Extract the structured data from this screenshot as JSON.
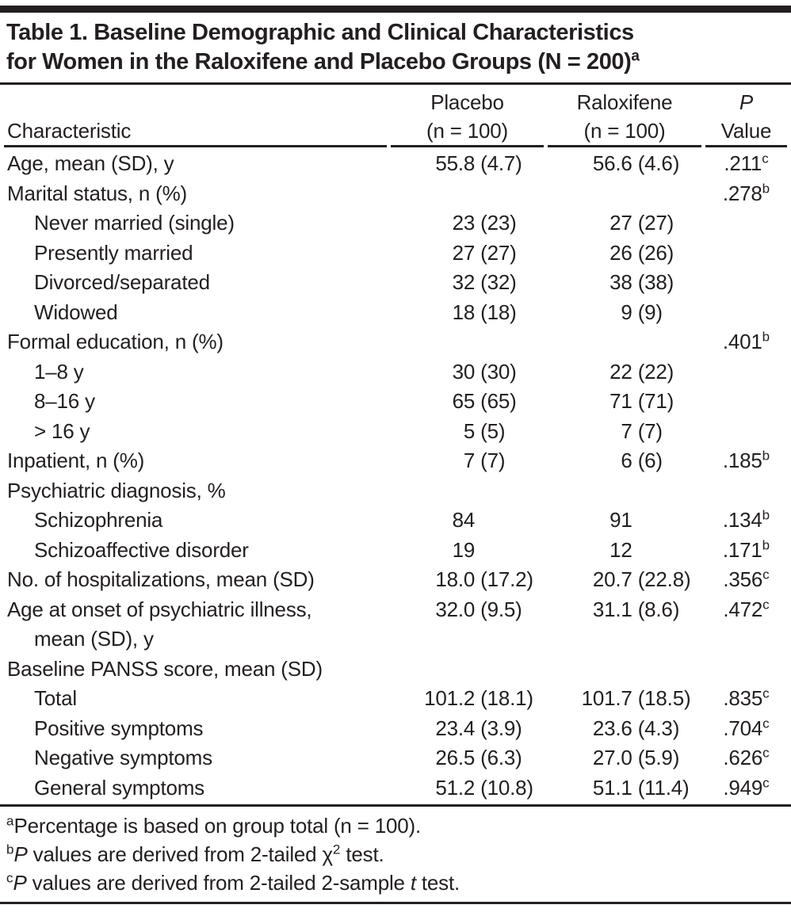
{
  "page": {
    "title": {
      "line1": "Table 1. Baseline Demographic and Clinical Characteristics",
      "line2": "for Women in the Raloxifene and Placebo Groups (N = 200)",
      "marker": "a"
    }
  },
  "table": {
    "header": {
      "characteristic": "Characteristic",
      "placebo": "Placebo",
      "placebo_n": "(n = 100)",
      "raloxifene": "Raloxifene",
      "raloxifene_n": "(n = 100)",
      "p_line1": "P",
      "p_line2": "Value"
    },
    "rows": [
      {
        "label": "Age, mean (SD), y",
        "indent": false,
        "placebo": "55.8 (4.7)",
        "raloxifene": "56.6 (4.6)",
        "p": ".211",
        "p_sup": "c"
      },
      {
        "label": "Marital status, n (%)",
        "indent": false,
        "placebo": "",
        "raloxifene": "",
        "p": ".278",
        "p_sup": "b"
      },
      {
        "label": "Never married (single)",
        "indent": true,
        "placebo": "23 (23)",
        "raloxifene": "27 (27)",
        "p": "",
        "p_sup": ""
      },
      {
        "label": "Presently married",
        "indent": true,
        "placebo": "27 (27)",
        "raloxifene": "26 (26)",
        "p": "",
        "p_sup": ""
      },
      {
        "label": "Divorced/separated",
        "indent": true,
        "placebo": "32 (32)",
        "raloxifene": "38 (38)",
        "p": "",
        "p_sup": ""
      },
      {
        "label": "Widowed",
        "indent": true,
        "placebo": "18 (18)",
        "raloxifene": "9 (9)",
        "p": "",
        "p_sup": ""
      },
      {
        "label": "Formal education, n (%)",
        "indent": false,
        "placebo": "",
        "raloxifene": "",
        "p": ".401",
        "p_sup": "b"
      },
      {
        "label": "1–8 y",
        "indent": true,
        "placebo": "30 (30)",
        "raloxifene": "22 (22)",
        "p": "",
        "p_sup": ""
      },
      {
        "label": "8–16 y",
        "indent": true,
        "placebo": "65 (65)",
        "raloxifene": "71 (71)",
        "p": "",
        "p_sup": ""
      },
      {
        "label": "> 16 y",
        "indent": true,
        "placebo": "5 (5)",
        "raloxifene": "7 (7)",
        "p": "",
        "p_sup": ""
      },
      {
        "label": "Inpatient, n (%)",
        "indent": false,
        "placebo": "7 (7)",
        "raloxifene": "6 (6)",
        "p": ".185",
        "p_sup": "b"
      },
      {
        "label": "Psychiatric diagnosis, %",
        "indent": false,
        "placebo": "",
        "raloxifene": "",
        "p": "",
        "p_sup": ""
      },
      {
        "label": "Schizophrenia",
        "indent": true,
        "placebo": "84",
        "raloxifene": "91",
        "p": ".134",
        "p_sup": "b"
      },
      {
        "label": "Schizoaffective disorder",
        "indent": true,
        "placebo": "19",
        "raloxifene": "12",
        "p": ".171",
        "p_sup": "b"
      },
      {
        "label": "No. of hospitalizations, mean (SD)",
        "indent": false,
        "placebo": "18.0 (17.2)",
        "raloxifene": "20.7 (22.8)",
        "p": ".356",
        "p_sup": "c"
      },
      {
        "label": "Age at onset of psychiatric illness,",
        "label2": "mean (SD), y",
        "indent": false,
        "placebo": "32.0 (9.5)",
        "raloxifene": "31.1 (8.6)",
        "p": ".472",
        "p_sup": "c"
      },
      {
        "label": "Baseline PANSS score, mean (SD)",
        "indent": false,
        "placebo": "",
        "raloxifene": "",
        "p": "",
        "p_sup": ""
      },
      {
        "label": "Total",
        "indent": true,
        "placebo": "101.2 (18.1)",
        "raloxifene": "101.7 (18.5)",
        "p": ".835",
        "p_sup": "c"
      },
      {
        "label": "Positive symptoms",
        "indent": true,
        "placebo": "23.4 (3.9)",
        "raloxifene": "23.6 (4.3)",
        "p": ".704",
        "p_sup": "c"
      },
      {
        "label": "Negative symptoms",
        "indent": true,
        "placebo": "26.5 (6.3)",
        "raloxifene": "27.0 (5.9)",
        "p": ".626",
        "p_sup": "c"
      },
      {
        "label": "General symptoms",
        "indent": true,
        "placebo": "51.2 (10.8)",
        "raloxifene": "51.1 (11.4)",
        "p": ".949",
        "p_sup": "c"
      }
    ]
  },
  "footnotes": [
    {
      "marker": "a",
      "parts": [
        {
          "t": "Percentage is based on group total (n = 100)."
        }
      ]
    },
    {
      "marker": "b",
      "parts": [
        {
          "t": "P",
          "style": "italic"
        },
        {
          "t": " values are derived from 2-tailed "
        },
        {
          "t": "χ"
        },
        {
          "t": "2",
          "style": "sup"
        },
        {
          "t": " test."
        }
      ]
    },
    {
      "marker": "c",
      "parts": [
        {
          "t": "P",
          "style": "italic"
        },
        {
          "t": " values are derived from 2-tailed 2-sample "
        },
        {
          "t": "t",
          "style": "italic"
        },
        {
          "t": " test."
        }
      ]
    }
  ]
}
